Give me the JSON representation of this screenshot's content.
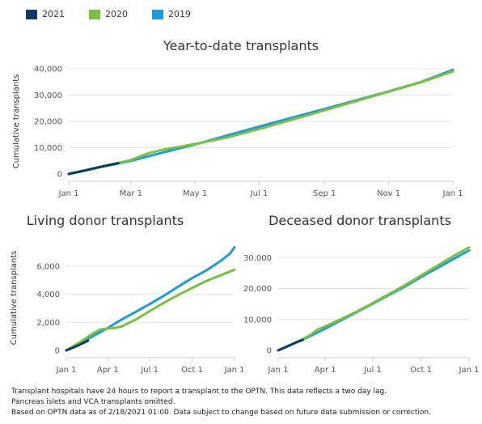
{
  "legend": [
    {
      "name": "2021",
      "color": "#0d3b66"
    },
    {
      "name": "2020",
      "color": "#7ac143"
    },
    {
      "name": "2019",
      "color": "#1f9bd9"
    }
  ],
  "footnotes": {
    "line1": "Transplant hospitals have 24 hours to report a transplant to the OPTN. This data reflects a two day lag.",
    "line2": "Pancreas islets and VCA transplants omitted.",
    "line3": "Based on OPTN data as of 2/18/2021 01:00. Data subject to change based on future data submission or correction."
  },
  "chart_data": [
    {
      "id": "ytd",
      "type": "line",
      "title": "Year-to-date transplants",
      "ylabel": "Cumulative transplants",
      "xlabel": "",
      "xlim": [
        0,
        365
      ],
      "ylim": [
        0,
        40000
      ],
      "x_ticks": [
        {
          "label": "Jan 1",
          "day": 0
        },
        {
          "label": "Mar 1",
          "day": 59
        },
        {
          "label": "May 1",
          "day": 120
        },
        {
          "label": "Jul 1",
          "day": 181
        },
        {
          "label": "Sep 1",
          "day": 243
        },
        {
          "label": "Nov 1",
          "day": 304
        },
        {
          "label": "Jan 1",
          "day": 365
        }
      ],
      "y_ticks": [
        {
          "label": "0",
          "value": 0
        },
        {
          "label": "10,000",
          "value": 10000
        },
        {
          "label": "20,000",
          "value": 20000
        },
        {
          "label": "30,000",
          "value": 30000
        },
        {
          "label": "40,000",
          "value": 40000
        }
      ],
      "series": [
        {
          "name": "2019",
          "color": "#1f9bd9",
          "x": [
            0,
            30,
            59,
            90,
            120,
            151,
            181,
            212,
            243,
            273,
            304,
            334,
            365
          ],
          "y": [
            0,
            2600,
            5000,
            8200,
            11200,
            14700,
            18000,
            21400,
            24700,
            28000,
            31400,
            34900,
            39600
          ]
        },
        {
          "name": "2020",
          "color": "#7ac143",
          "x": [
            0,
            30,
            59,
            75,
            90,
            105,
            120,
            151,
            181,
            212,
            243,
            273,
            304,
            334,
            365
          ],
          "y": [
            0,
            2700,
            5300,
            7800,
            9300,
            10300,
            11400,
            13900,
            17100,
            20600,
            24200,
            27700,
            31300,
            34800,
            39000
          ]
        },
        {
          "name": "2021",
          "color": "#0d3b66",
          "x": [
            0,
            15,
            30,
            47
          ],
          "y": [
            0,
            1300,
            2700,
            4100
          ]
        }
      ]
    },
    {
      "id": "living",
      "type": "line",
      "title": "Living donor transplants",
      "ylabel": "Cumulative transplants",
      "xlabel": "",
      "xlim": [
        0,
        365
      ],
      "ylim": [
        0,
        7500
      ],
      "x_ticks": [
        {
          "label": "Jan 1",
          "day": 0
        },
        {
          "label": "Apr 1",
          "day": 90
        },
        {
          "label": "Jul 1",
          "day": 181
        },
        {
          "label": "Oct 1",
          "day": 273
        },
        {
          "label": "Jan 1",
          "day": 365
        }
      ],
      "y_ticks": [
        {
          "label": "0",
          "value": 0
        },
        {
          "label": "2,000",
          "value": 2000
        },
        {
          "label": "4,000",
          "value": 4000
        },
        {
          "label": "6,000",
          "value": 6000
        }
      ],
      "series": [
        {
          "name": "2019",
          "color": "#1f9bd9",
          "x": [
            0,
            30,
            60,
            90,
            120,
            151,
            181,
            212,
            243,
            273,
            304,
            334,
            355,
            365
          ],
          "y": [
            0,
            520,
            1050,
            1600,
            2200,
            2750,
            3300,
            3900,
            4550,
            5150,
            5700,
            6350,
            6900,
            7350
          ]
        },
        {
          "name": "2020",
          "color": "#7ac143",
          "x": [
            0,
            30,
            60,
            75,
            90,
            105,
            120,
            151,
            181,
            212,
            243,
            273,
            304,
            334,
            365
          ],
          "y": [
            0,
            600,
            1250,
            1500,
            1550,
            1600,
            1700,
            2200,
            2800,
            3400,
            3950,
            4450,
            4950,
            5350,
            5750
          ]
        },
        {
          "name": "2021",
          "color": "#0d3b66",
          "x": [
            0,
            15,
            30,
            47
          ],
          "y": [
            0,
            200,
            420,
            690
          ]
        }
      ]
    },
    {
      "id": "deceased",
      "type": "line",
      "title": "Deceased donor transplants",
      "ylabel": "",
      "xlabel": "",
      "xlim": [
        0,
        365
      ],
      "ylim": [
        0,
        34000
      ],
      "x_ticks": [
        {
          "label": "Jan 1",
          "day": 0
        },
        {
          "label": "Apr 1",
          "day": 90
        },
        {
          "label": "Jul 1",
          "day": 181
        },
        {
          "label": "Oct 1",
          "day": 273
        },
        {
          "label": "Jan 1",
          "day": 365
        }
      ],
      "y_ticks": [
        {
          "label": "0",
          "value": 0
        },
        {
          "label": "10,000",
          "value": 10000
        },
        {
          "label": "20,000",
          "value": 20000
        },
        {
          "label": "30,000",
          "value": 30000
        }
      ],
      "series": [
        {
          "name": "2019",
          "color": "#1f9bd9",
          "x": [
            0,
            30,
            60,
            90,
            120,
            151,
            181,
            212,
            243,
            273,
            304,
            334,
            365
          ],
          "y": [
            0,
            2200,
            4500,
            7000,
            9700,
            12400,
            15100,
            17900,
            20700,
            23700,
            26600,
            29400,
            32300
          ]
        },
        {
          "name": "2020",
          "color": "#7ac143",
          "x": [
            0,
            30,
            60,
            75,
            90,
            120,
            151,
            181,
            212,
            243,
            273,
            304,
            334,
            365
          ],
          "y": [
            0,
            2200,
            4800,
            6700,
            7800,
            10100,
            12600,
            15300,
            18200,
            21100,
            24200,
            27300,
            30400,
            33300
          ]
        },
        {
          "name": "2021",
          "color": "#0d3b66",
          "x": [
            0,
            15,
            30,
            47
          ],
          "y": [
            0,
            1100,
            2300,
            3400
          ]
        }
      ]
    }
  ]
}
